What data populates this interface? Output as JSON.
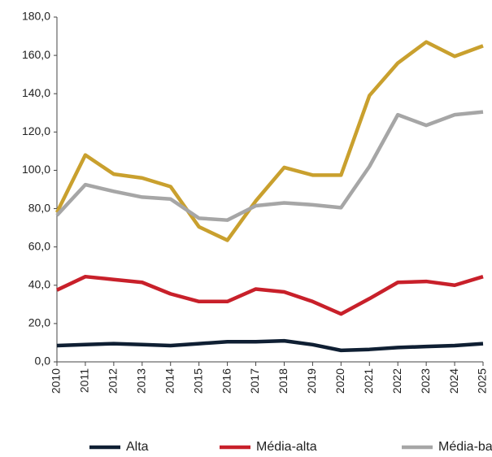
{
  "chart_data": {
    "type": "line",
    "categories": [
      "2010",
      "2011",
      "2012",
      "2013",
      "2014",
      "2015",
      "2016",
      "2017",
      "2018",
      "2019",
      "2020",
      "2021",
      "2022",
      "2023",
      "2024",
      "2025"
    ],
    "series": [
      {
        "name": "Alta",
        "color": "#0f1f33",
        "values": [
          8.5,
          9,
          9.5,
          9,
          8.5,
          9.5,
          10.5,
          10.5,
          11,
          9,
          6,
          6.5,
          7.5,
          8,
          8.5,
          9.5
        ]
      },
      {
        "name": "Média-alta",
        "color": "#c8202a",
        "values": [
          37.5,
          44.5,
          43,
          41.5,
          35.5,
          31.5,
          31.5,
          38,
          36.5,
          31.5,
          25,
          33,
          41.5,
          42,
          40,
          44.5
        ]
      },
      {
        "name": "Média-ba",
        "color": "#a6a6a6",
        "values": [
          76.5,
          92.5,
          89,
          86,
          85,
          75,
          74,
          81.5,
          83,
          82,
          80.5,
          102,
          129,
          123.5,
          129,
          130.5
        ]
      },
      {
        "color": "#c9a02e",
        "values": [
          78,
          108,
          98,
          96,
          91.5,
          70.5,
          63.5,
          84,
          101.5,
          97.5,
          97.5,
          139,
          156,
          167,
          159.5,
          165
        ]
      }
    ],
    "ylim": [
      0,
      180
    ],
    "yticks": [
      {
        "value": 0,
        "label": "0,0"
      },
      {
        "value": 20,
        "label": "20,0"
      },
      {
        "value": 40,
        "label": "40,0"
      },
      {
        "value": 60,
        "label": "60,0"
      },
      {
        "value": 80,
        "label": "80,0"
      },
      {
        "value": 100,
        "label": "100,0"
      },
      {
        "value": 120,
        "label": "120,0"
      },
      {
        "value": 140,
        "label": "140,0"
      },
      {
        "value": 160,
        "label": "160,0"
      },
      {
        "value": 180,
        "label": "180,0"
      }
    ]
  }
}
